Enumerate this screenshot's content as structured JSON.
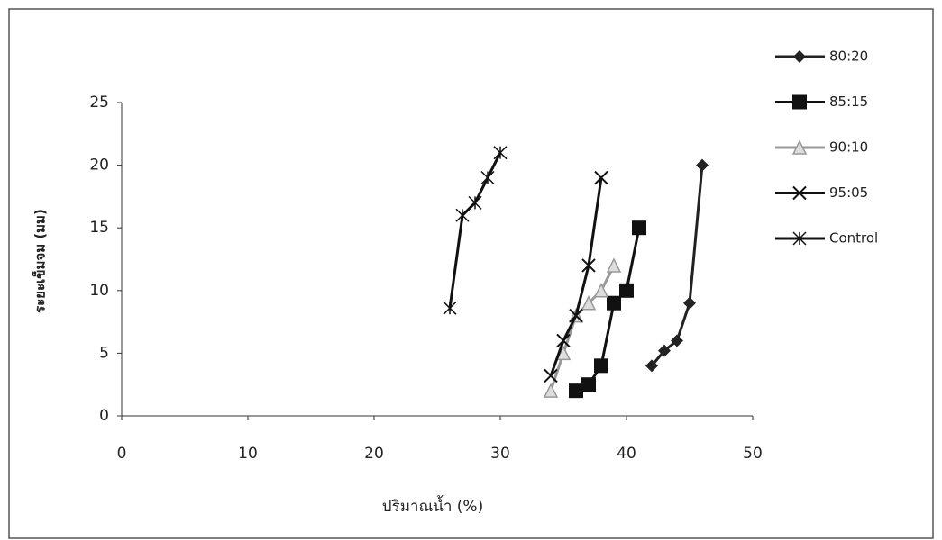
{
  "chart_data": {
    "type": "line",
    "xlabel": "ปริมาณน้ำ (%)",
    "ylabel": "ระยะเข็มจม (มม)",
    "xlim": [
      0,
      50
    ],
    "xticks": [
      0,
      10,
      20,
      30,
      40,
      50
    ],
    "ylim": [
      0,
      25
    ],
    "yticks": [
      0,
      5,
      10,
      15,
      20,
      25
    ],
    "grid": false,
    "legend": "right",
    "series": [
      {
        "name": "80:20",
        "color": "#222222",
        "marker": "diamond",
        "x": [
          42,
          43,
          44,
          45,
          46
        ],
        "values": [
          4,
          5.2,
          6,
          9,
          20
        ]
      },
      {
        "name": "85:15",
        "color": "#111111",
        "marker": "square",
        "x": [
          36,
          37,
          38,
          39,
          40,
          41
        ],
        "values": [
          2,
          2.5,
          4,
          9,
          10,
          15
        ]
      },
      {
        "name": "90:10",
        "color": "#999999",
        "marker": "triangle",
        "x": [
          34,
          35,
          36,
          37,
          38,
          39
        ],
        "values": [
          2,
          5,
          8,
          9,
          10,
          12
        ]
      },
      {
        "name": "95:05",
        "color": "#111111",
        "marker": "x",
        "x": [
          34,
          35,
          36,
          37,
          38
        ],
        "values": [
          3.2,
          6,
          8,
          12,
          19
        ]
      },
      {
        "name": "Control",
        "color": "#111111",
        "marker": "star",
        "x": [
          26,
          27,
          28,
          29,
          30
        ],
        "values": [
          8.6,
          16,
          17,
          19,
          21
        ]
      }
    ]
  }
}
